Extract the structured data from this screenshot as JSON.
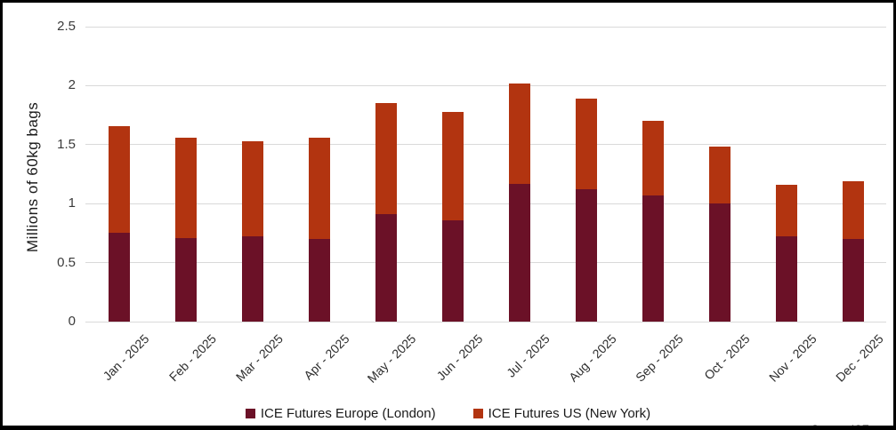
{
  "frame": {
    "border_color": "#000000",
    "background": "#ffffff"
  },
  "chart_data": {
    "type": "bar",
    "stacked": true,
    "title": "",
    "xlabel": "",
    "ylabel": "Millions of 60kg bags",
    "ylim": [
      0,
      2.5
    ],
    "yticks": [
      0,
      0.5,
      1,
      1.5,
      2,
      2.5
    ],
    "ytick_labels": [
      "0",
      "0.5",
      "1",
      "1.5",
      "2",
      "2.5"
    ],
    "grid": "horizontal-light-gray",
    "gridline_color": "#d9d9d9",
    "xlabel_rotation": 45,
    "legend_position": "bottom-center",
    "categories": [
      "Jan - 2025",
      "Feb - 2025",
      "Mar - 2025",
      "Apr - 2025",
      "May - 2025",
      "Jun - 2025",
      "Jul - 2025",
      "Aug - 2025",
      "Sep - 2025",
      "Oct - 2025",
      "Nov - 2025",
      "Dec - 2025"
    ],
    "series": [
      {
        "name": "ICE Futures Europe (London)",
        "color": "#6B1127",
        "values": [
          0.75,
          0.71,
          0.72,
          0.7,
          0.91,
          0.86,
          1.17,
          1.12,
          1.07,
          1.0,
          0.72,
          0.7
        ]
      },
      {
        "name": "ICE Futures US (New York)",
        "color": "#B23410",
        "values": [
          0.91,
          0.85,
          0.81,
          0.86,
          0.94,
          0.92,
          0.85,
          0.77,
          0.63,
          0.48,
          0.44,
          0.49
        ]
      }
    ],
    "stack_totals": [
      1.66,
      1.56,
      1.53,
      1.56,
      1.85,
      1.78,
      2.02,
      1.89,
      1.7,
      1.48,
      1.16,
      1.19
    ]
  },
  "legend": {
    "items": [
      {
        "label": "ICE Futures Europe (London)",
        "color": "#6B1127"
      },
      {
        "label": "ICE Futures US (New York)",
        "color": "#B23410"
      }
    ]
  },
  "source_note": "Source: ICE"
}
